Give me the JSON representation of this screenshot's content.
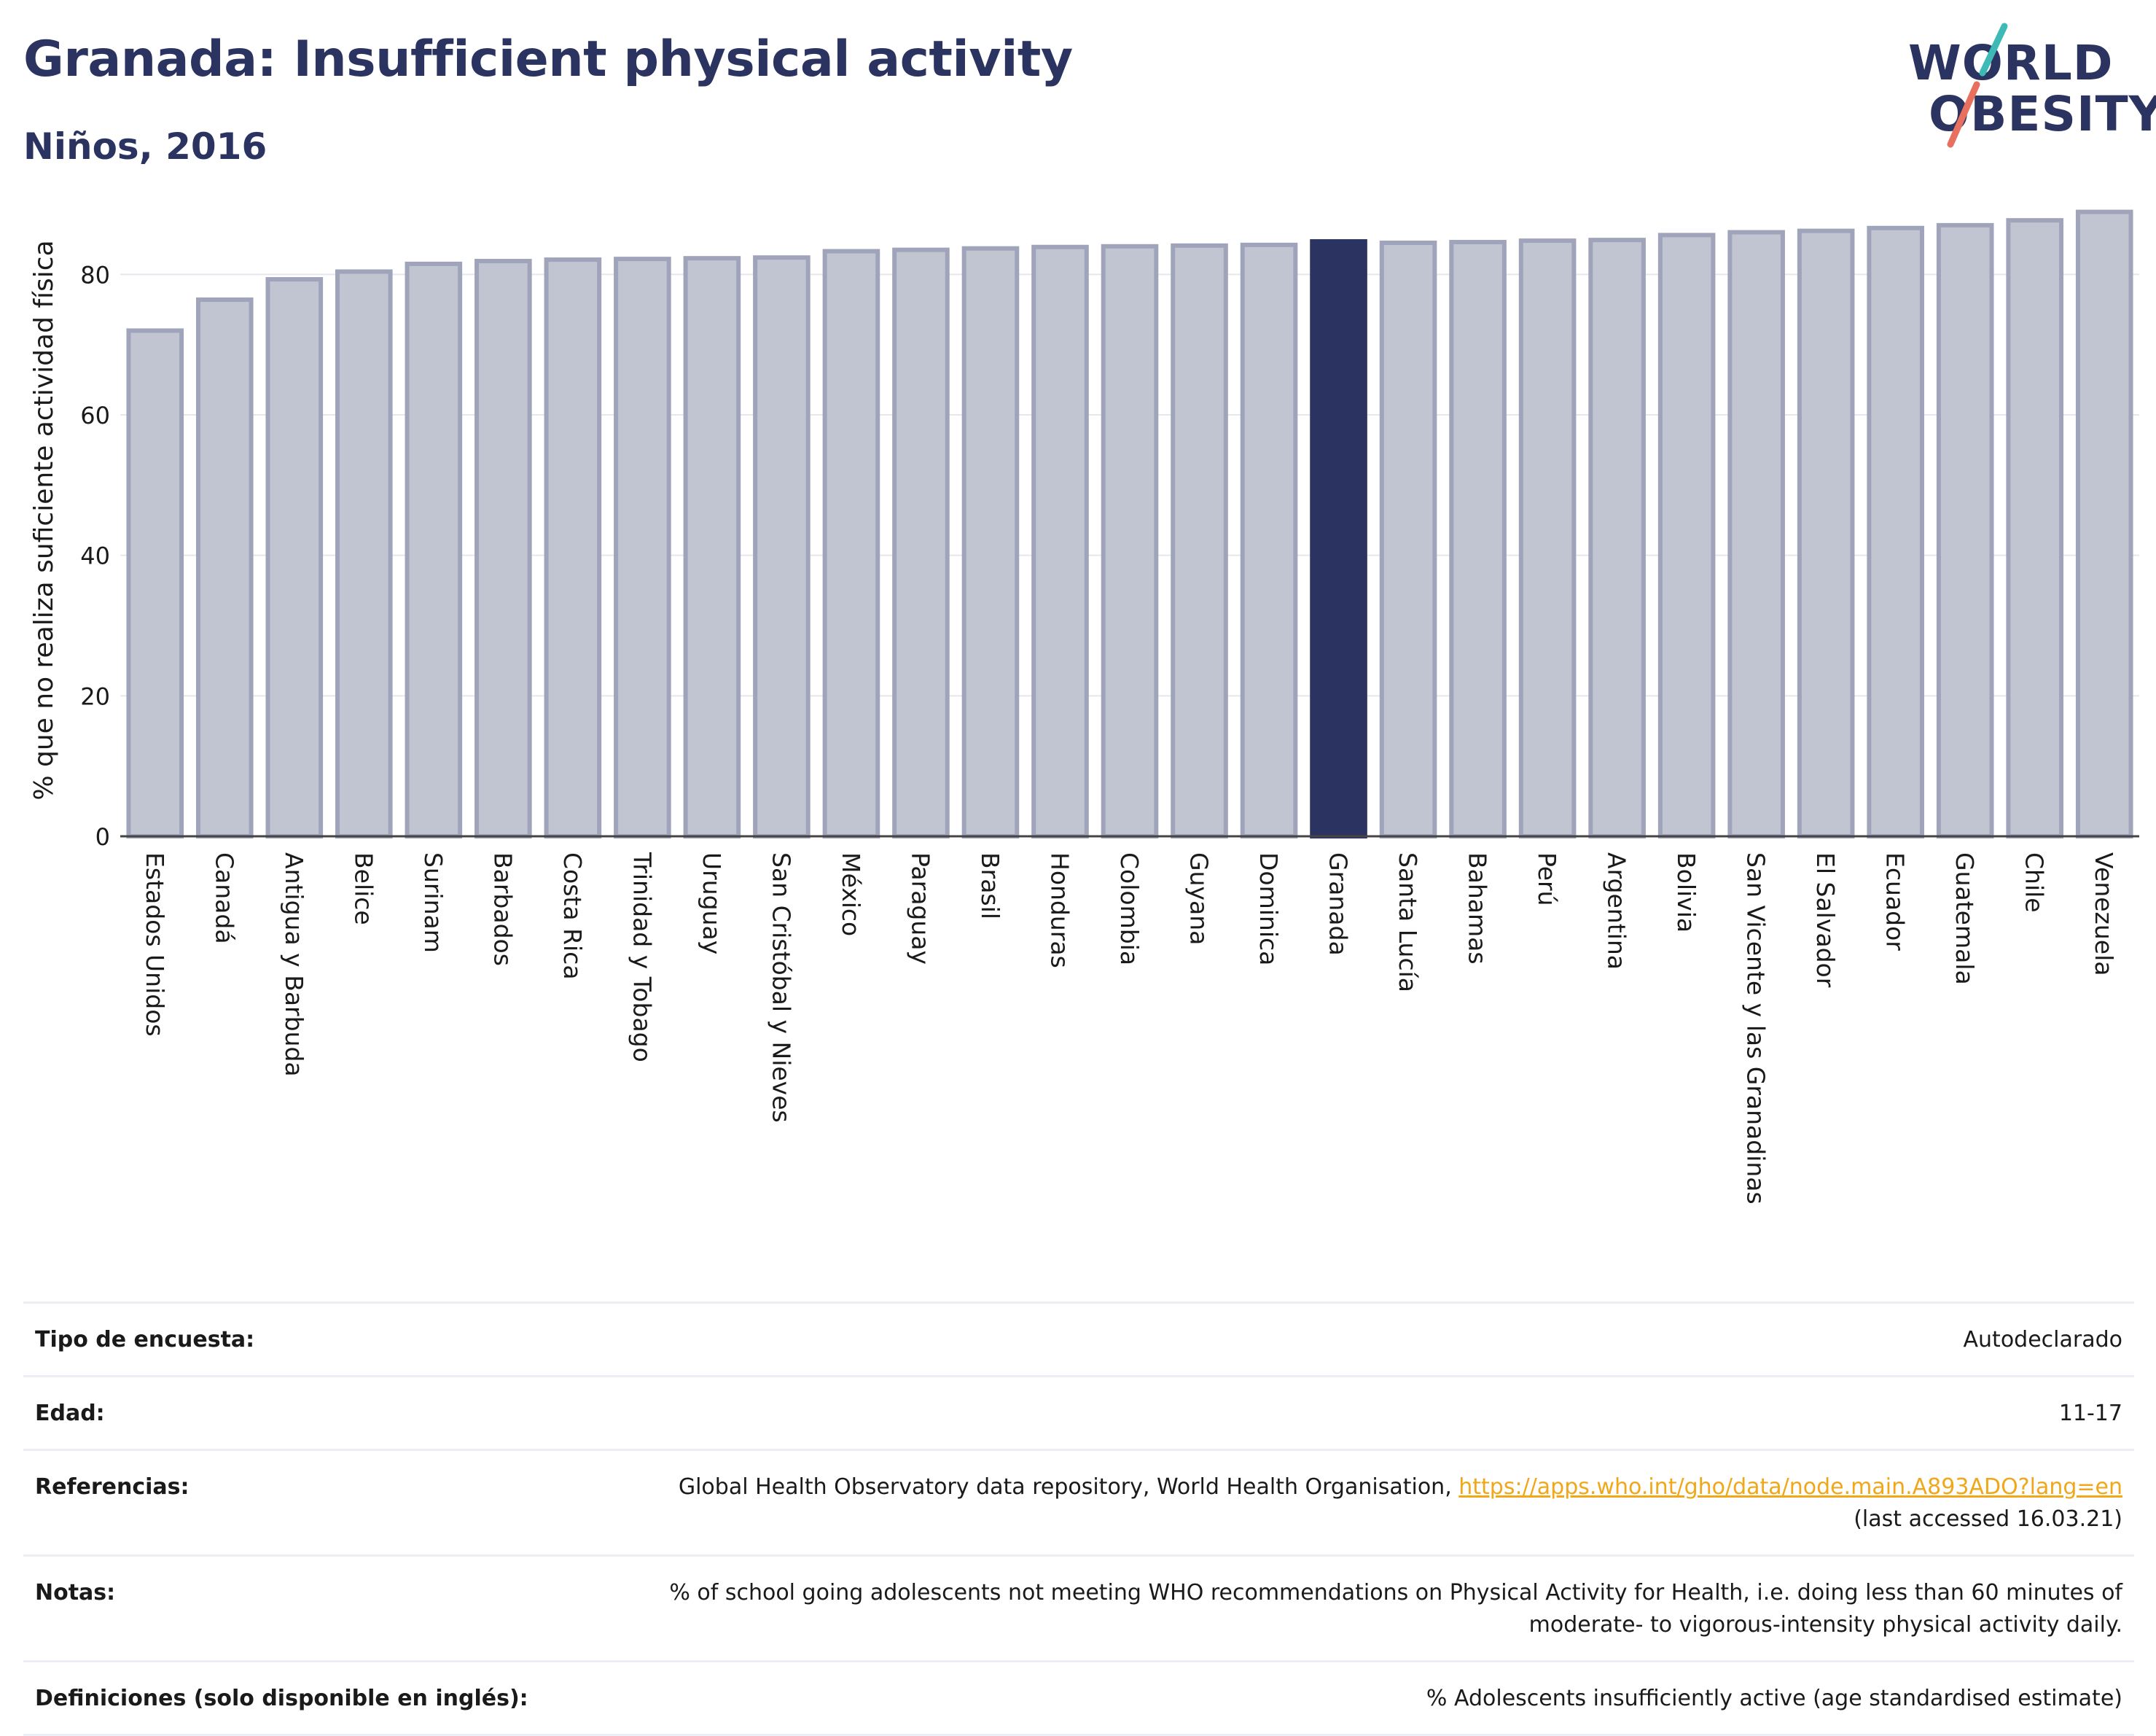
{
  "header": {
    "title": "Granada: Insufficient physical activity",
    "subtitle": "Niños, 2016"
  },
  "logo": {
    "line1": "WORLD",
    "line2": "OBESITY"
  },
  "colors": {
    "title": "#2b3461",
    "bar_default": "#c1c4d1",
    "bar_default_stroke": "#9fa4ba",
    "bar_highlight": "#2b3461",
    "logo_slash_teal": "#3dbab5",
    "logo_slash_coral": "#e8705f",
    "link": "#f0a81a"
  },
  "chart_data": {
    "type": "bar",
    "ylabel": "% que no realiza suficiente actividad física",
    "ylim": [
      0,
      90
    ],
    "yticks": [
      0,
      20,
      40,
      60,
      80
    ],
    "grid": true,
    "highlight": "Granada",
    "categories": [
      "Estados Unidos",
      "Canadá",
      "Antigua y Barbuda",
      "Belice",
      "Surinam",
      "Barbados",
      "Costa Rica",
      "Trinidad y Tobago",
      "Uruguay",
      "San Cristóbal y Nieves",
      "México",
      "Paraguay",
      "Brasil",
      "Honduras",
      "Colombia",
      "Guyana",
      "Dominica",
      "Granada",
      "Santa Lucía",
      "Bahamas",
      "Perú",
      "Argentina",
      "Bolivia",
      "San Vicente y las Granadinas",
      "El Salvador",
      "Ecuador",
      "Guatemala",
      "Chile",
      "Venezuela"
    ],
    "values": [
      72.0,
      76.4,
      79.3,
      80.4,
      81.5,
      81.9,
      82.1,
      82.2,
      82.3,
      82.4,
      83.3,
      83.5,
      83.7,
      83.9,
      84.0,
      84.1,
      84.2,
      84.7,
      84.5,
      84.6,
      84.8,
      84.9,
      85.6,
      86.0,
      86.2,
      86.6,
      87.0,
      87.7,
      88.9
    ]
  },
  "info": {
    "rows": [
      {
        "label": "Tipo de encuesta:",
        "value": "Autodeclarado"
      },
      {
        "label": "Edad:",
        "value": "11-17"
      },
      {
        "label": "Referencias:",
        "value": "Global Health Observatory data repository, World Health Organisation, ",
        "link": "https://apps.who.int/gho/data/node.main.A893ADO?lang=en",
        "value_after": "(last accessed 16.03.21)"
      },
      {
        "label": "Notas:",
        "value": "% of school going adolescents not meeting WHO recommendations on Physical Activity for Health, i.e. doing less than 60 minutes of moderate- to vigorous-intensity physical activity daily."
      },
      {
        "label": "Definiciones (solo disponible en inglés):",
        "value": "% Adolescents insufficiently active (age standardised estimate)"
      }
    ]
  }
}
